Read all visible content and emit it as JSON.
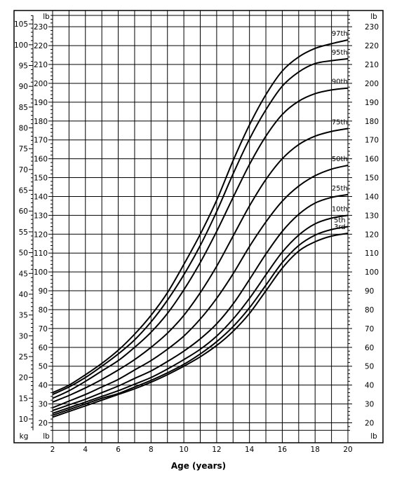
{
  "chart_data": {
    "type": "line",
    "xlabel": "Age (years)",
    "ylabel_left": "kg",
    "ylabel_right": "lb",
    "lb_label": "lb",
    "xlim": [
      2,
      20
    ],
    "x_ticks": [
      "2",
      "4",
      "6",
      "8",
      "10",
      "12",
      "14",
      "16",
      "18",
      "20"
    ],
    "kg_ticks": [
      "10",
      "15",
      "20",
      "25",
      "30",
      "35",
      "40",
      "45",
      "50",
      "55",
      "60",
      "65",
      "70",
      "75",
      "80",
      "85",
      "90",
      "95",
      "100",
      "105"
    ],
    "lb_ticks": [
      "20",
      "30",
      "40",
      "50",
      "60",
      "70",
      "80",
      "90",
      "100",
      "110",
      "120",
      "130",
      "140",
      "150",
      "160",
      "170",
      "180",
      "190",
      "200",
      "210",
      "220",
      "230"
    ],
    "ylim_lb": [
      16,
      236
    ],
    "grid": true,
    "series": [
      {
        "name": "97th",
        "x": [
          2,
          3,
          4,
          5,
          6,
          7,
          8,
          9,
          10,
          11,
          12,
          13,
          14,
          15,
          16,
          17,
          18,
          19,
          20
        ],
        "y_lb": [
          36,
          40,
          45.5,
          51.5,
          58.5,
          67,
          77,
          89,
          104,
          120,
          138,
          159,
          178,
          194,
          206.5,
          214,
          218.5,
          221,
          223
        ]
      },
      {
        "name": "95th",
        "x": [
          2,
          3,
          4,
          5,
          6,
          7,
          8,
          9,
          10,
          11,
          12,
          13,
          14,
          15,
          16,
          17,
          18,
          19,
          20
        ],
        "y_lb": [
          35,
          39,
          44,
          50,
          56.5,
          64,
          73.5,
          85,
          98.5,
          114,
          132,
          152,
          170.5,
          186,
          198.5,
          206,
          210.5,
          212,
          213
        ]
      },
      {
        "name": "90th",
        "x": [
          2,
          3,
          4,
          5,
          6,
          7,
          8,
          9,
          10,
          11,
          12,
          13,
          14,
          15,
          16,
          17,
          18,
          19,
          20
        ],
        "y_lb": [
          33,
          37,
          42,
          47.5,
          53,
          60,
          68,
          78,
          90.5,
          105,
          121.5,
          139.5,
          157,
          172,
          183.5,
          190.5,
          194.5,
          196.5,
          197.5
        ]
      },
      {
        "name": "75th",
        "x": [
          2,
          3,
          4,
          5,
          6,
          7,
          8,
          9,
          10,
          11,
          12,
          13,
          14,
          15,
          16,
          17,
          18,
          19,
          20
        ],
        "y_lb": [
          31,
          34.5,
          38.5,
          43,
          48,
          53.5,
          60,
          67.5,
          77,
          89,
          103,
          119,
          135,
          149,
          160,
          167.5,
          172,
          174.5,
          176
        ]
      },
      {
        "name": "50th",
        "x": [
          2,
          3,
          4,
          5,
          6,
          7,
          8,
          9,
          10,
          11,
          12,
          13,
          14,
          15,
          16,
          17,
          18,
          19,
          20
        ],
        "y_lb": [
          28,
          31.5,
          35,
          39,
          43,
          48,
          53,
          59,
          66,
          75,
          86,
          99,
          113.5,
          126.5,
          137.5,
          145.5,
          151,
          154.5,
          156.5
        ]
      },
      {
        "name": "25th",
        "x": [
          2,
          3,
          4,
          5,
          6,
          7,
          8,
          9,
          10,
          11,
          12,
          13,
          14,
          15,
          16,
          17,
          18,
          19,
          20
        ],
        "y_lb": [
          26.5,
          29.5,
          32.5,
          36,
          39.5,
          43.5,
          47.5,
          52.5,
          58,
          64.5,
          72.5,
          83,
          96,
          109.5,
          121.5,
          130.5,
          136.5,
          139.5,
          141
        ]
      },
      {
        "name": "10th",
        "x": [
          2,
          3,
          4,
          5,
          6,
          7,
          8,
          9,
          10,
          11,
          12,
          13,
          14,
          15,
          16,
          17,
          18,
          19,
          20
        ],
        "y_lb": [
          25,
          28,
          31,
          34,
          37,
          40.5,
          44,
          48.5,
          53.5,
          59,
          66,
          75,
          86,
          98.5,
          110.5,
          119.5,
          125.5,
          128.5,
          130
        ]
      },
      {
        "name": "5th",
        "x": [
          2,
          3,
          4,
          5,
          6,
          7,
          8,
          9,
          10,
          11,
          12,
          13,
          14,
          15,
          16,
          17,
          18,
          19,
          20
        ],
        "y_lb": [
          24,
          27,
          30,
          33,
          35.5,
          39,
          42.5,
          46.5,
          51,
          56.5,
          63,
          71,
          81,
          93,
          105,
          114,
          119.5,
          122.5,
          124
        ]
      },
      {
        "name": "3rd",
        "x": [
          2,
          3,
          4,
          5,
          6,
          7,
          8,
          9,
          10,
          11,
          12,
          13,
          14,
          15,
          16,
          17,
          18,
          19,
          20
        ],
        "y_lb": [
          23,
          26,
          29,
          32,
          35,
          38,
          41.5,
          45.5,
          50,
          55,
          61,
          68.5,
          78,
          90,
          102,
          111,
          116,
          119,
          120.5
        ]
      }
    ]
  }
}
